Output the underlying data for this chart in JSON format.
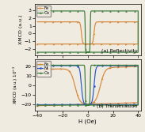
{
  "panel_a": {
    "title": "(a) Reflectivity",
    "ylabel": "XMCD (a.u.)",
    "ylim": [
      -2.8,
      3.8
    ],
    "yticks": [
      -2,
      -1,
      0,
      1,
      2,
      3
    ],
    "xlim": [
      -42,
      42
    ],
    "fe_color": "#d4883a",
    "co_color": "#3a7a3a",
    "fe_switch_fwd": 5.0,
    "fe_switch_bwd": -5.0,
    "co_switch_fwd": 2.0,
    "co_switch_bwd": -2.0,
    "fe_low": -1.35,
    "fe_high": 1.5,
    "co_low": -2.4,
    "co_high": 2.9,
    "fe_sharpness": 2.2,
    "co_sharpness": 8.0
  },
  "panel_b": {
    "title": "(b) Transmission",
    "ylabel": "XMCD (a.u.) 10",
    "ylabel_exp": "-2",
    "xlabel": "H (Oe)",
    "ylim": [
      -27,
      27
    ],
    "yticks": [
      -20,
      -10,
      0,
      10,
      20
    ],
    "xlim": [
      -42,
      42
    ],
    "fe_color": "#d4883a",
    "ni_color": "#2255cc",
    "co_color": "#3a7a3a",
    "fe_switch_fwd": 10.0,
    "fe_switch_bwd": -10.0,
    "ni_switch_fwd": 5.0,
    "ni_switch_bwd": -5.0,
    "co_switch_fwd": 2.0,
    "co_switch_bwd": -2.0,
    "fe_low": -20.0,
    "fe_high": 18.0,
    "ni_low": -20.5,
    "ni_high": 20.5,
    "co_low": -21.0,
    "co_high": 21.0,
    "fe_sharpness": 0.55,
    "ni_sharpness": 1.5,
    "co_sharpness": 7.0,
    "fe_slope": 0.04,
    "ni_slope": 0.0,
    "co_slope": 0.0
  },
  "bg_color": "#f0ebe0",
  "marker_size": 1.8,
  "linewidth": 0.85
}
